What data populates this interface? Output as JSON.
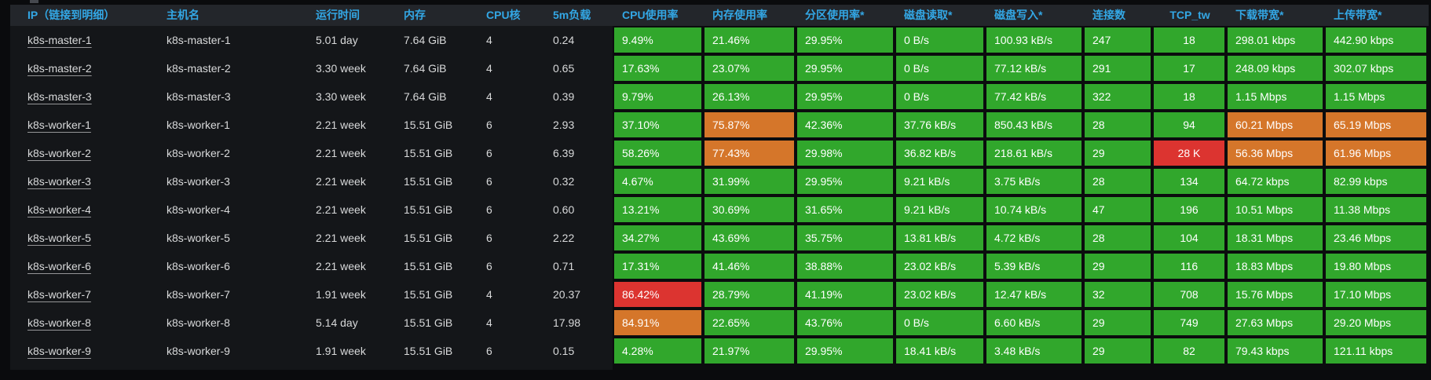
{
  "colors": {
    "green": "#31a72c",
    "orange": "#d5762a",
    "red": "#dc3430",
    "header_text": "#33a7e5",
    "row_bg": "#141619",
    "header_bg": "#23262b"
  },
  "table": {
    "columns": [
      {
        "key": "ip",
        "label": "IP（链接到明细）"
      },
      {
        "key": "hostname",
        "label": "主机名"
      },
      {
        "key": "uptime",
        "label": "运行时间"
      },
      {
        "key": "memory",
        "label": "内存"
      },
      {
        "key": "cpu_cores",
        "label": "CPU核"
      },
      {
        "key": "load_5m",
        "label": "5m负载"
      },
      {
        "key": "cpu_usage",
        "label": "CPU使用率"
      },
      {
        "key": "mem_usage",
        "label": "内存使用率"
      },
      {
        "key": "partition_usage",
        "label": "分区使用率*"
      },
      {
        "key": "disk_read",
        "label": "磁盘读取*"
      },
      {
        "key": "disk_write",
        "label": "磁盘写入*"
      },
      {
        "key": "connections",
        "label": "连接数"
      },
      {
        "key": "tcp_tw",
        "label": "TCP_tw"
      },
      {
        "key": "download_bw",
        "label": "下载带宽*"
      },
      {
        "key": "upload_bw",
        "label": "上传带宽*"
      }
    ],
    "rows": [
      {
        "values": [
          "k8s-master-1",
          "k8s-master-1",
          "5.01 day",
          "7.64 GiB",
          "4",
          "0.24",
          "9.49%",
          "21.46%",
          "29.95%",
          "0 B/s",
          "100.93 kB/s",
          "247",
          "18",
          "298.01 kbps",
          "442.90 kbps"
        ],
        "colors": [
          null,
          null,
          null,
          null,
          null,
          null,
          "green",
          "green",
          "green",
          "green",
          "green",
          "green",
          "green",
          "green",
          "green"
        ]
      },
      {
        "values": [
          "k8s-master-2",
          "k8s-master-2",
          "3.30 week",
          "7.64 GiB",
          "4",
          "0.65",
          "17.63%",
          "23.07%",
          "29.95%",
          "0 B/s",
          "77.12 kB/s",
          "291",
          "17",
          "248.09 kbps",
          "302.07 kbps"
        ],
        "colors": [
          null,
          null,
          null,
          null,
          null,
          null,
          "green",
          "green",
          "green",
          "green",
          "green",
          "green",
          "green",
          "green",
          "green"
        ]
      },
      {
        "values": [
          "k8s-master-3",
          "k8s-master-3",
          "3.30 week",
          "7.64 GiB",
          "4",
          "0.39",
          "9.79%",
          "26.13%",
          "29.95%",
          "0 B/s",
          "77.42 kB/s",
          "322",
          "18",
          "1.15 Mbps",
          "1.15 Mbps"
        ],
        "colors": [
          null,
          null,
          null,
          null,
          null,
          null,
          "green",
          "green",
          "green",
          "green",
          "green",
          "green",
          "green",
          "green",
          "green"
        ]
      },
      {
        "values": [
          "k8s-worker-1",
          "k8s-worker-1",
          "2.21 week",
          "15.51 GiB",
          "6",
          "2.93",
          "37.10%",
          "75.87%",
          "42.36%",
          "37.76 kB/s",
          "850.43 kB/s",
          "28",
          "94",
          "60.21 Mbps",
          "65.19 Mbps"
        ],
        "colors": [
          null,
          null,
          null,
          null,
          null,
          null,
          "green",
          "orange",
          "green",
          "green",
          "green",
          "green",
          "green",
          "orange",
          "orange"
        ]
      },
      {
        "values": [
          "k8s-worker-2",
          "k8s-worker-2",
          "2.21 week",
          "15.51 GiB",
          "6",
          "6.39",
          "58.26%",
          "77.43%",
          "29.98%",
          "36.82 kB/s",
          "218.61 kB/s",
          "29",
          "28 K",
          "56.36 Mbps",
          "61.96 Mbps"
        ],
        "colors": [
          null,
          null,
          null,
          null,
          null,
          null,
          "green",
          "orange",
          "green",
          "green",
          "green",
          "green",
          "red",
          "orange",
          "orange"
        ]
      },
      {
        "values": [
          "k8s-worker-3",
          "k8s-worker-3",
          "2.21 week",
          "15.51 GiB",
          "6",
          "0.32",
          "4.67%",
          "31.99%",
          "29.95%",
          "9.21 kB/s",
          "3.75 kB/s",
          "28",
          "134",
          "64.72 kbps",
          "82.99 kbps"
        ],
        "colors": [
          null,
          null,
          null,
          null,
          null,
          null,
          "green",
          "green",
          "green",
          "green",
          "green",
          "green",
          "green",
          "green",
          "green"
        ]
      },
      {
        "values": [
          "k8s-worker-4",
          "k8s-worker-4",
          "2.21 week",
          "15.51 GiB",
          "6",
          "0.60",
          "13.21%",
          "30.69%",
          "31.65%",
          "9.21 kB/s",
          "10.74 kB/s",
          "47",
          "196",
          "10.51 Mbps",
          "11.38 Mbps"
        ],
        "colors": [
          null,
          null,
          null,
          null,
          null,
          null,
          "green",
          "green",
          "green",
          "green",
          "green",
          "green",
          "green",
          "green",
          "green"
        ]
      },
      {
        "values": [
          "k8s-worker-5",
          "k8s-worker-5",
          "2.21 week",
          "15.51 GiB",
          "6",
          "2.22",
          "34.27%",
          "43.69%",
          "35.75%",
          "13.81 kB/s",
          "4.72 kB/s",
          "28",
          "104",
          "18.31 Mbps",
          "23.46 Mbps"
        ],
        "colors": [
          null,
          null,
          null,
          null,
          null,
          null,
          "green",
          "green",
          "green",
          "green",
          "green",
          "green",
          "green",
          "green",
          "green"
        ]
      },
      {
        "values": [
          "k8s-worker-6",
          "k8s-worker-6",
          "2.21 week",
          "15.51 GiB",
          "6",
          "0.71",
          "17.31%",
          "41.46%",
          "38.88%",
          "23.02 kB/s",
          "5.39 kB/s",
          "29",
          "116",
          "18.83 Mbps",
          "19.80 Mbps"
        ],
        "colors": [
          null,
          null,
          null,
          null,
          null,
          null,
          "green",
          "green",
          "green",
          "green",
          "green",
          "green",
          "green",
          "green",
          "green"
        ]
      },
      {
        "values": [
          "k8s-worker-7",
          "k8s-worker-7",
          "1.91 week",
          "15.51 GiB",
          "4",
          "20.37",
          "86.42%",
          "28.79%",
          "41.19%",
          "23.02 kB/s",
          "12.47 kB/s",
          "32",
          "708",
          "15.76 Mbps",
          "17.10 Mbps"
        ],
        "colors": [
          null,
          null,
          null,
          null,
          null,
          null,
          "red",
          "green",
          "green",
          "green",
          "green",
          "green",
          "green",
          "green",
          "green"
        ]
      },
      {
        "values": [
          "k8s-worker-8",
          "k8s-worker-8",
          "5.14 day",
          "15.51 GiB",
          "4",
          "17.98",
          "84.91%",
          "22.65%",
          "43.76%",
          "0 B/s",
          "6.60 kB/s",
          "29",
          "749",
          "27.63 Mbps",
          "29.20 Mbps"
        ],
        "colors": [
          null,
          null,
          null,
          null,
          null,
          null,
          "orange",
          "green",
          "green",
          "green",
          "green",
          "green",
          "green",
          "green",
          "green"
        ]
      },
      {
        "values": [
          "k8s-worker-9",
          "k8s-worker-9",
          "1.91 week",
          "15.51 GiB",
          "6",
          "0.15",
          "4.28%",
          "21.97%",
          "29.95%",
          "18.41 kB/s",
          "3.48 kB/s",
          "29",
          "82",
          "79.43 kbps",
          "121.11 kbps"
        ],
        "colors": [
          null,
          null,
          null,
          null,
          null,
          null,
          "green",
          "green",
          "green",
          "green",
          "green",
          "green",
          "green",
          "green",
          "green"
        ]
      }
    ]
  }
}
